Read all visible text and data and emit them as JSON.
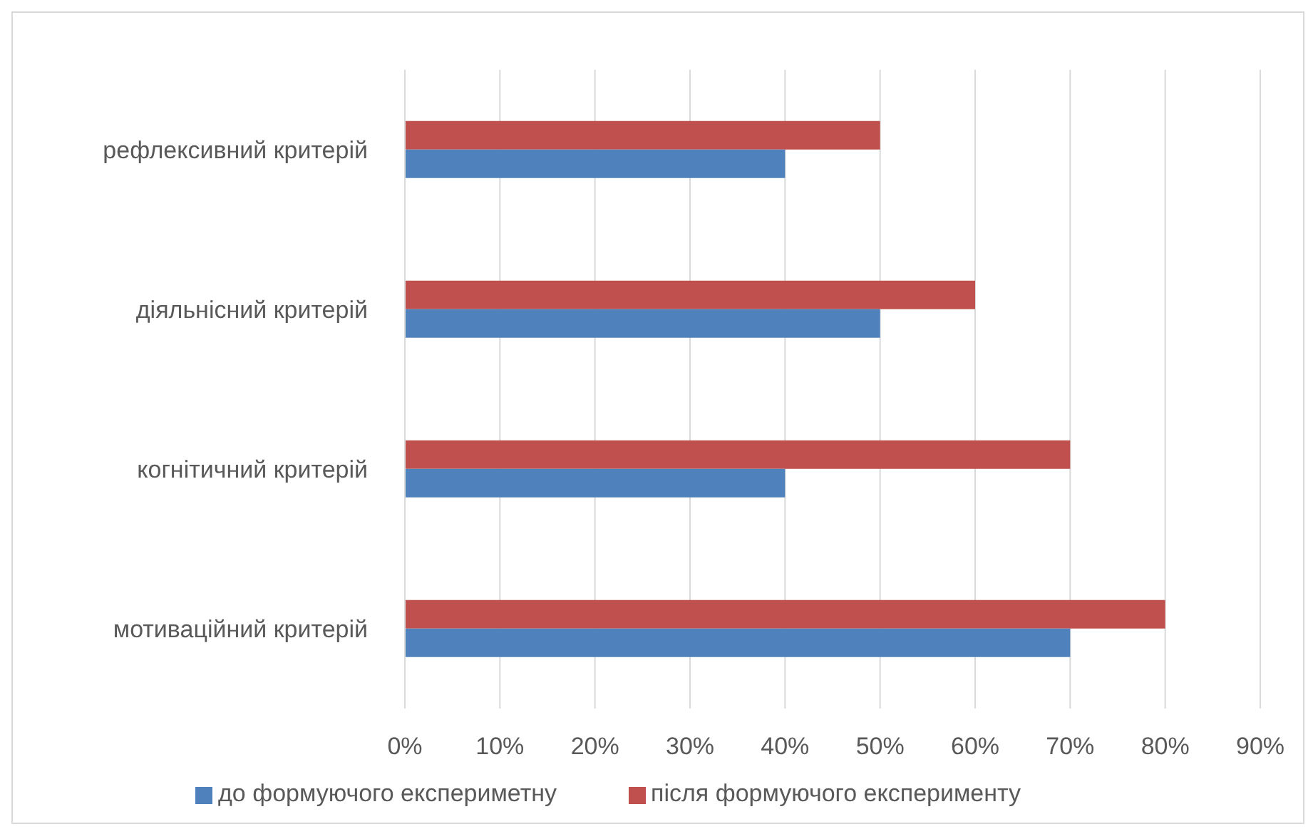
{
  "chart_data": {
    "type": "bar",
    "orientation": "horizontal",
    "categories": [
      "рефлексивний критерій",
      "діяльнісний критерій",
      "когнітичний критерій",
      "мотиваційний критерій"
    ],
    "series": [
      {
        "name": "після формуючого експерименту",
        "color": "#c0504d",
        "values": [
          50,
          60,
          70,
          80
        ]
      },
      {
        "name": "до формуючого експериметну",
        "color": "#4f81bd",
        "values": [
          40,
          50,
          40,
          70
        ]
      }
    ],
    "xlim": [
      0,
      90
    ],
    "xticks": [
      {
        "value": 0,
        "label": "0%"
      },
      {
        "value": 10,
        "label": "10%"
      },
      {
        "value": 20,
        "label": "20%"
      },
      {
        "value": 30,
        "label": "30%"
      },
      {
        "value": 40,
        "label": "40%"
      },
      {
        "value": 50,
        "label": "50%"
      },
      {
        "value": 60,
        "label": "60%"
      },
      {
        "value": 70,
        "label": "70%"
      },
      {
        "value": 80,
        "label": "80%"
      },
      {
        "value": 90,
        "label": "90%"
      }
    ],
    "grid": "x",
    "legend": "bottom"
  }
}
